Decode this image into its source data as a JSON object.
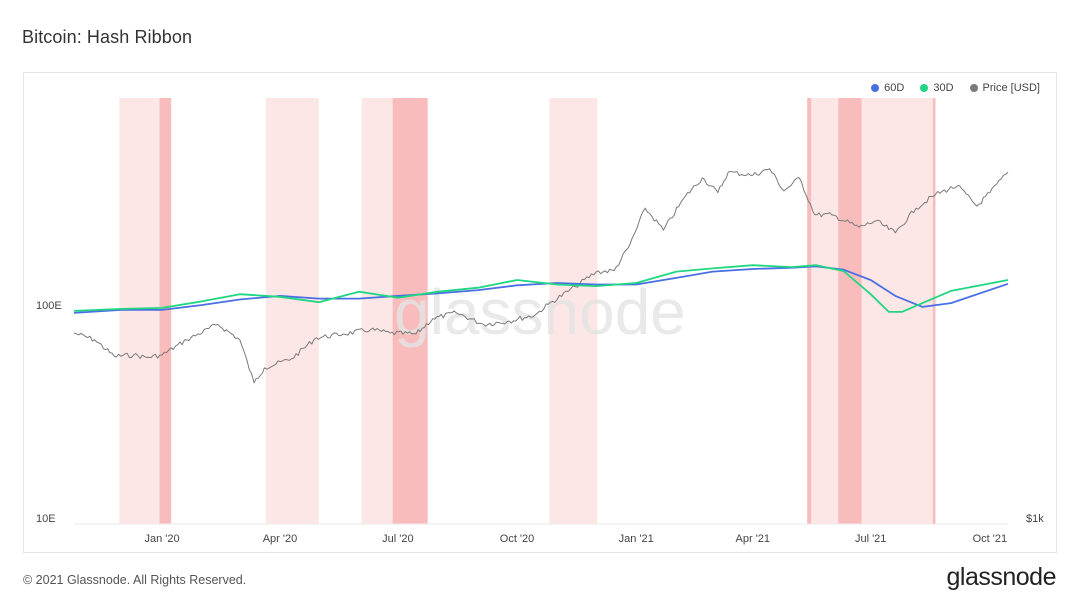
{
  "title": "Bitcoin: Hash Ribbon",
  "footer": {
    "copyright": "© 2021 Glassnode. All Rights Reserved.",
    "brand": "glassnode"
  },
  "watermark": "glassnode",
  "colors": {
    "ma60": "#4a6fe3",
    "ma30": "#1fd681",
    "price": "#7a7a7a",
    "band_light": "#fde6e6",
    "band_dark": "#f8b4b4"
  },
  "legend": [
    {
      "label": "60D",
      "color": "#4a6fe3"
    },
    {
      "label": "30D",
      "color": "#1fd681"
    },
    {
      "label": "Price [USD]",
      "color": "#7a7a7a"
    }
  ],
  "chart_data": {
    "type": "line",
    "y_scale": "log",
    "y_left_ticks": [
      "100E",
      "10E"
    ],
    "y_right_ticks": [
      "$1k"
    ],
    "x_range": [
      "2019-10-25",
      "2021-10-15"
    ],
    "x_ticks": [
      {
        "date": "2020-01-01",
        "label": "Jan '20"
      },
      {
        "date": "2020-04-01",
        "label": "Apr '20"
      },
      {
        "date": "2020-07-01",
        "label": "Jul '20"
      },
      {
        "date": "2020-10-01",
        "label": "Oct '20"
      },
      {
        "date": "2021-01-01",
        "label": "Jan '21"
      },
      {
        "date": "2021-04-01",
        "label": "Apr '21"
      },
      {
        "date": "2021-07-01",
        "label": "Jul '21"
      },
      {
        "date": "2021-10-01",
        "label": "Oct '21"
      }
    ],
    "capitulation_bands": [
      {
        "start": "2019-11-29",
        "end": "2020-01-08",
        "level": "light"
      },
      {
        "start": "2019-12-30",
        "end": "2020-01-08",
        "level": "dark"
      },
      {
        "start": "2020-03-21",
        "end": "2020-05-01",
        "level": "light"
      },
      {
        "start": "2020-06-03",
        "end": "2020-07-24",
        "level": "light"
      },
      {
        "start": "2020-06-27",
        "end": "2020-07-24",
        "level": "dark"
      },
      {
        "start": "2020-10-26",
        "end": "2020-12-02",
        "level": "light"
      },
      {
        "start": "2021-05-13",
        "end": "2021-08-20",
        "level": "light"
      },
      {
        "start": "2021-05-13",
        "end": "2021-05-16",
        "level": "dark"
      },
      {
        "start": "2021-06-06",
        "end": "2021-06-24",
        "level": "dark"
      },
      {
        "start": "2021-08-18",
        "end": "2021-08-20",
        "level": "dark"
      }
    ],
    "series": [
      {
        "name": "60D",
        "unit": "EH/s",
        "x": [
          "2019-10-25",
          "2019-12-01",
          "2020-01-01",
          "2020-02-01",
          "2020-03-01",
          "2020-04-01",
          "2020-05-01",
          "2020-06-01",
          "2020-07-01",
          "2020-08-01",
          "2020-09-01",
          "2020-10-01",
          "2020-11-01",
          "2020-12-01",
          "2021-01-01",
          "2021-02-01",
          "2021-03-01",
          "2021-04-01",
          "2021-05-01",
          "2021-05-20",
          "2021-06-10",
          "2021-07-01",
          "2021-07-20",
          "2021-08-10",
          "2021-09-01",
          "2021-10-15"
        ],
        "values": [
          92,
          95,
          95,
          100,
          106,
          110,
          107,
          107,
          110,
          113,
          117,
          123,
          126,
          124,
          124,
          133,
          142,
          146,
          148,
          150,
          145,
          130,
          110,
          98,
          102,
          125
        ]
      },
      {
        "name": "30D",
        "unit": "EH/s",
        "x": [
          "2019-10-25",
          "2019-12-01",
          "2020-01-01",
          "2020-02-01",
          "2020-03-01",
          "2020-04-01",
          "2020-05-01",
          "2020-06-01",
          "2020-07-01",
          "2020-08-01",
          "2020-09-01",
          "2020-10-01",
          "2020-11-01",
          "2020-12-01",
          "2021-01-01",
          "2021-02-01",
          "2021-03-01",
          "2021-04-01",
          "2021-05-01",
          "2021-05-20",
          "2021-06-10",
          "2021-07-01",
          "2021-07-15",
          "2021-07-25",
          "2021-08-10",
          "2021-09-01",
          "2021-10-15"
        ],
        "values": [
          94,
          96,
          97,
          104,
          112,
          109,
          103,
          115,
          108,
          115,
          120,
          130,
          124,
          122,
          126,
          142,
          147,
          152,
          149,
          152,
          143,
          112,
          93,
          93,
          102,
          116,
          130
        ]
      },
      {
        "name": "Price [USD]",
        "unit": "USD",
        "x": [
          "2019-10-25",
          "2019-11-10",
          "2019-11-25",
          "2019-12-10",
          "2019-12-20",
          "2020-01-01",
          "2020-01-20",
          "2020-02-13",
          "2020-03-01",
          "2020-03-12",
          "2020-03-20",
          "2020-04-10",
          "2020-04-29",
          "2020-05-20",
          "2020-06-10",
          "2020-06-25",
          "2020-07-15",
          "2020-07-28",
          "2020-08-15",
          "2020-09-05",
          "2020-09-25",
          "2020-10-15",
          "2020-10-25",
          "2020-11-15",
          "2020-12-01",
          "2020-12-15",
          "2020-12-27",
          "2021-01-08",
          "2021-01-22",
          "2021-02-08",
          "2021-02-21",
          "2021-03-05",
          "2021-03-13",
          "2021-04-01",
          "2021-04-14",
          "2021-04-25",
          "2021-05-07",
          "2021-05-19",
          "2021-06-01",
          "2021-06-22",
          "2021-07-05",
          "2021-07-20",
          "2021-08-05",
          "2021-08-20",
          "2021-09-06",
          "2021-09-21",
          "2021-10-01",
          "2021-10-15"
        ],
        "values": [
          9300,
          8600,
          7100,
          7200,
          7000,
          7200,
          8600,
          10300,
          8600,
          5200,
          6200,
          6900,
          8800,
          9200,
          9700,
          9300,
          9200,
          11000,
          11800,
          10300,
          10700,
          11500,
          13000,
          16000,
          19000,
          19300,
          26000,
          40000,
          31000,
          46000,
          57000,
          48000,
          61000,
          58800,
          63500,
          49000,
          57000,
          37000,
          37000,
          32000,
          34500,
          30000,
          40000,
          47000,
          52000,
          41000,
          48000,
          61000
        ]
      }
    ]
  }
}
